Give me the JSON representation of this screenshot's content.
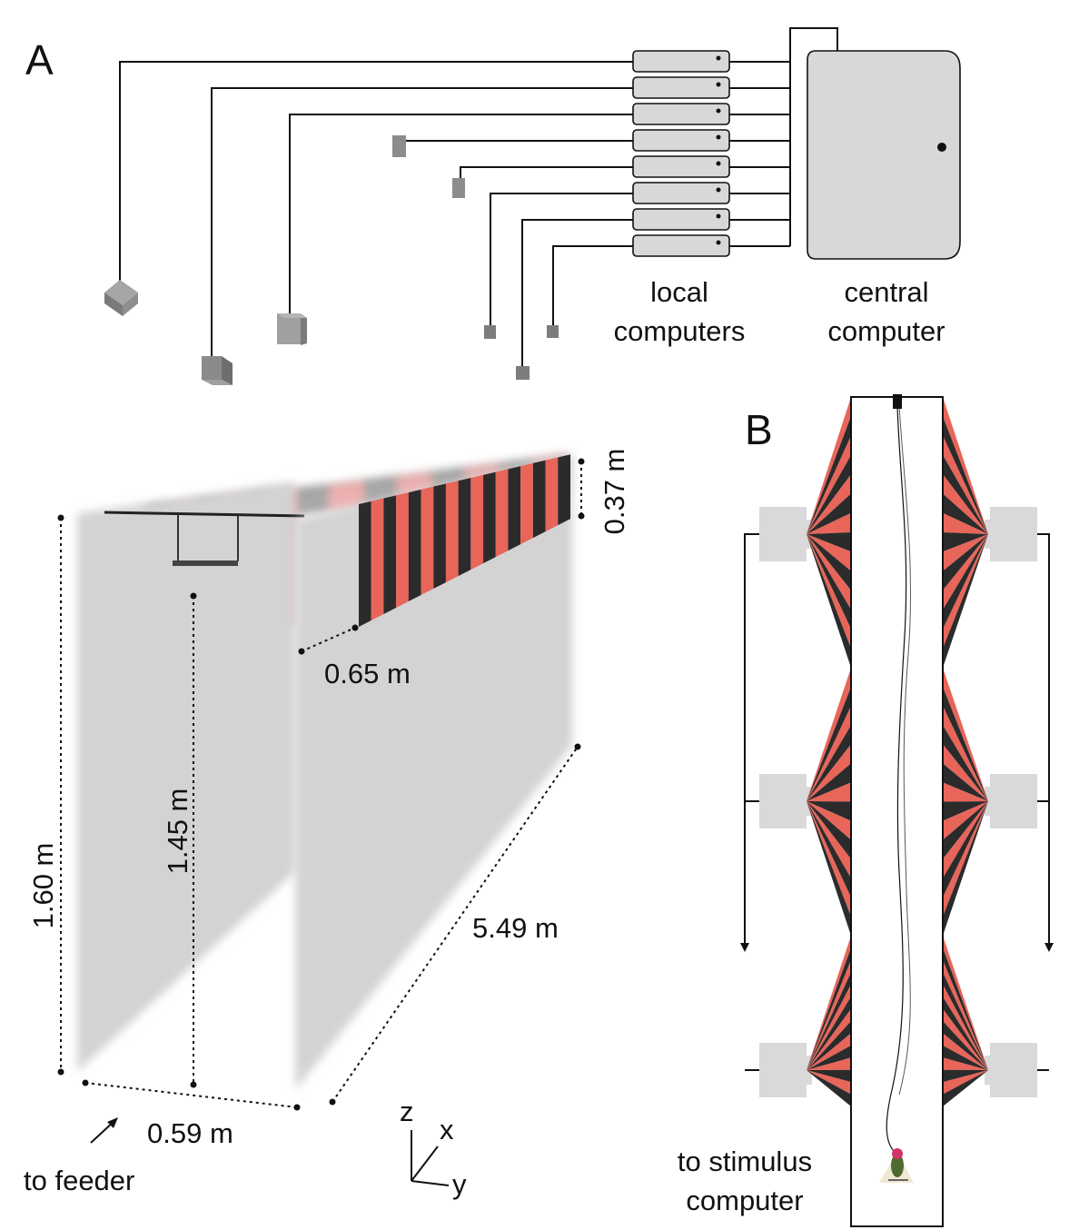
{
  "panels": {
    "a_label": "A",
    "b_label": "B"
  },
  "panel_a": {
    "local_computers_line1": "local",
    "local_computers_line2": "computers",
    "central_computer_line1": "central",
    "central_computer_line2": "computer",
    "local_computer_count": 8
  },
  "tunnel": {
    "height_label": "1.60 m",
    "perch_height_label": "1.45 m",
    "length_label": "5.49 m",
    "width_label": "0.59 m",
    "pattern_offset_label": "0.65 m",
    "pattern_height_label": "0.37 m",
    "feeder_label": "to feeder",
    "axis_z": "z",
    "axis_x": "x",
    "axis_y": "y"
  },
  "panel_b": {
    "stimulus_line1": "to stimulus",
    "stimulus_line2": "computer",
    "projector_count": 6
  },
  "colors": {
    "stripe_red": "#e8655a",
    "stripe_dark": "#2b2b2b",
    "wall_gray": "#d3d3d3",
    "camera_gray": "#8c8c8c",
    "computer_fill": "#d8d8d8"
  }
}
